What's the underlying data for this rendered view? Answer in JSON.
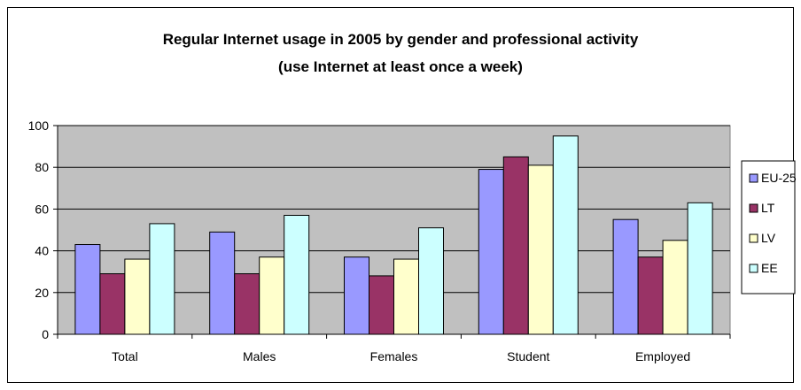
{
  "chart_data": {
    "type": "bar",
    "title": "Regular Internet usage in 2005 by gender and professional activity",
    "subtitle": "(use Internet at least once a week)",
    "categories": [
      "Total",
      "Males",
      "Females",
      "Student",
      "Employed"
    ],
    "series": [
      {
        "name": "EU-25",
        "color": "#9999ff",
        "values": [
          43,
          49,
          37,
          79,
          55
        ]
      },
      {
        "name": "LT",
        "color": "#993366",
        "values": [
          29,
          29,
          28,
          85,
          37
        ]
      },
      {
        "name": "LV",
        "color": "#ffffcc",
        "values": [
          36,
          37,
          36,
          81,
          45
        ]
      },
      {
        "name": "EE",
        "color": "#ccffff",
        "values": [
          53,
          57,
          51,
          95,
          63
        ]
      }
    ],
    "ylim": [
      0,
      100
    ],
    "yticks": [
      0,
      20,
      40,
      60,
      80,
      100
    ],
    "grid": true,
    "plot_background": "#c0c0c0",
    "legend": "right"
  }
}
